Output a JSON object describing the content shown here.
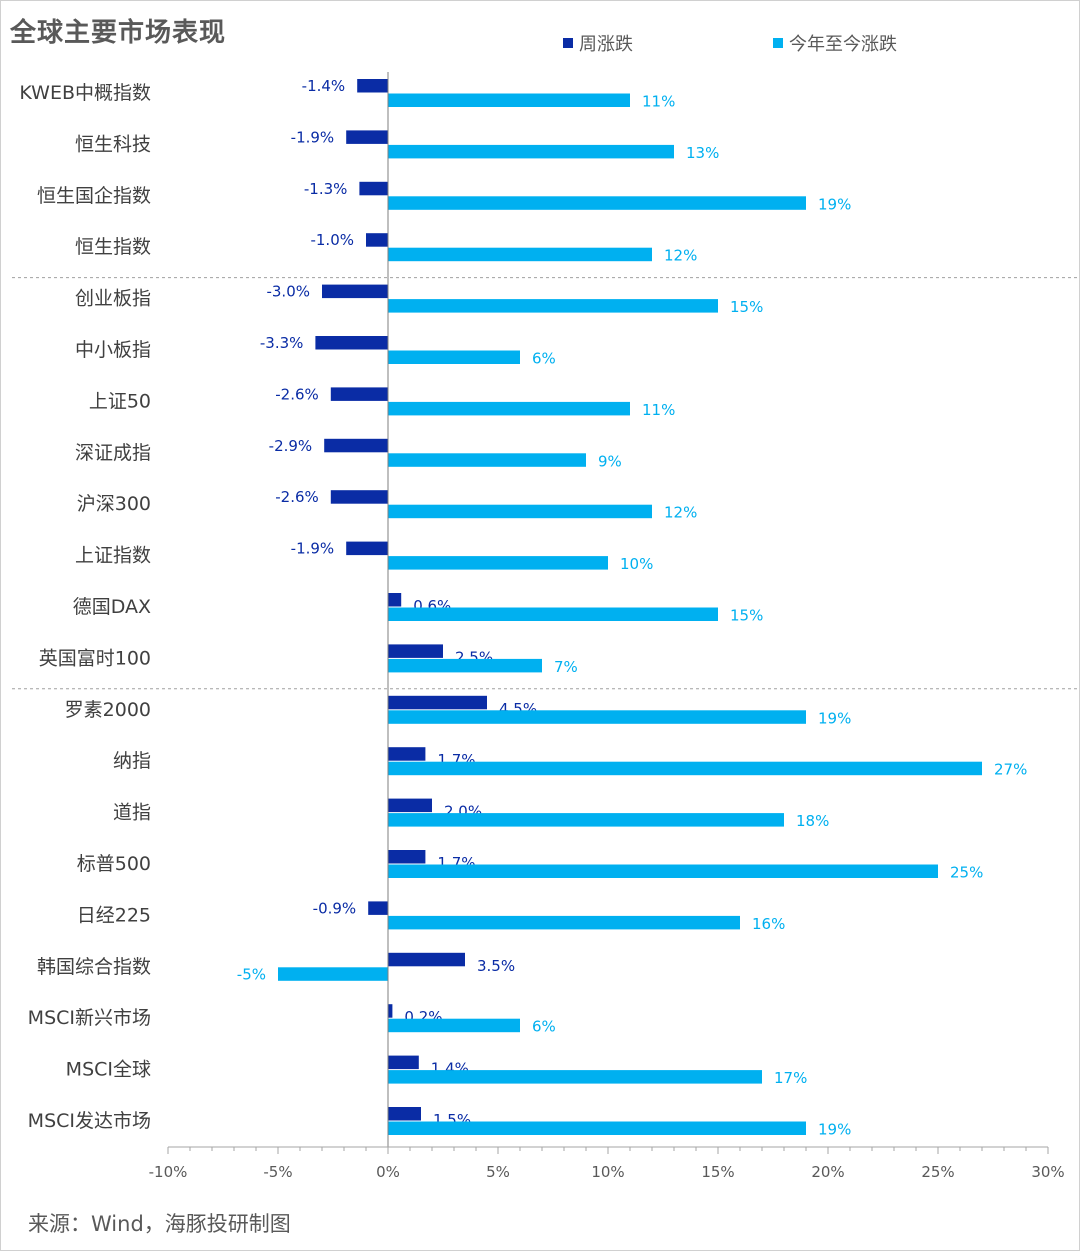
{
  "title": "全球主要市场表现",
  "source": "来源：Wind，海豚投研制图",
  "colors": {
    "weekly": "#0a2ca5",
    "ytd": "#00b0f0",
    "axis": "#a6a6a6",
    "label": "#404040"
  },
  "chart_data": {
    "type": "bar",
    "orientation": "horizontal",
    "categories": [
      "KWEB中概指数",
      "恒生科技",
      "恒生国企指数",
      "恒生指数",
      "创业板指",
      "中小板指",
      "上证50",
      "深证成指",
      "沪深300",
      "上证指数",
      "德国DAX",
      "英国富时100",
      "罗素2000",
      "纳指",
      "道指",
      "标普500",
      "日经225",
      "韩国综合指数",
      "MSCI新兴市场",
      "MSCI全球",
      "MSCI发达市场"
    ],
    "series": [
      {
        "name": "周涨跌",
        "values": [
          -1.4,
          -1.9,
          -1.3,
          -1.0,
          -3.0,
          -3.3,
          -2.6,
          -2.9,
          -2.6,
          -1.9,
          0.6,
          2.5,
          4.5,
          1.7,
          2.0,
          1.7,
          -0.9,
          3.5,
          0.2,
          1.4,
          1.5
        ],
        "labels": [
          "-1.4%",
          "-1.9%",
          "-1.3%",
          "-1.0%",
          "-3.0%",
          "-3.3%",
          "-2.6%",
          "-2.9%",
          "-2.6%",
          "-1.9%",
          "0.6%",
          "2.5%",
          "4.5%",
          "1.7%",
          "2.0%",
          "1.7%",
          "-0.9%",
          "3.5%",
          "0.2%",
          "1.4%",
          "1.5%"
        ]
      },
      {
        "name": "今年至今涨跌",
        "values": [
          11,
          13,
          19,
          12,
          15,
          6,
          11,
          9,
          12,
          10,
          15,
          7,
          19,
          27,
          18,
          25,
          16,
          -5,
          6,
          17,
          19
        ],
        "labels": [
          "11%",
          "13%",
          "19%",
          "12%",
          "15%",
          "6%",
          "11%",
          "9%",
          "12%",
          "10%",
          "15%",
          "7%",
          "19%",
          "27%",
          "18%",
          "25%",
          "16%",
          "-5%",
          "6%",
          "17%",
          "19%"
        ]
      }
    ],
    "xlim": [
      -10,
      30
    ],
    "xticks": [
      "-10%",
      "-5%",
      "0%",
      "5%",
      "10%",
      "15%",
      "20%",
      "25%",
      "30%"
    ],
    "group_separators_after": [
      "恒生指数",
      "英国富时100"
    ],
    "legend_position": "top",
    "grid": false
  }
}
